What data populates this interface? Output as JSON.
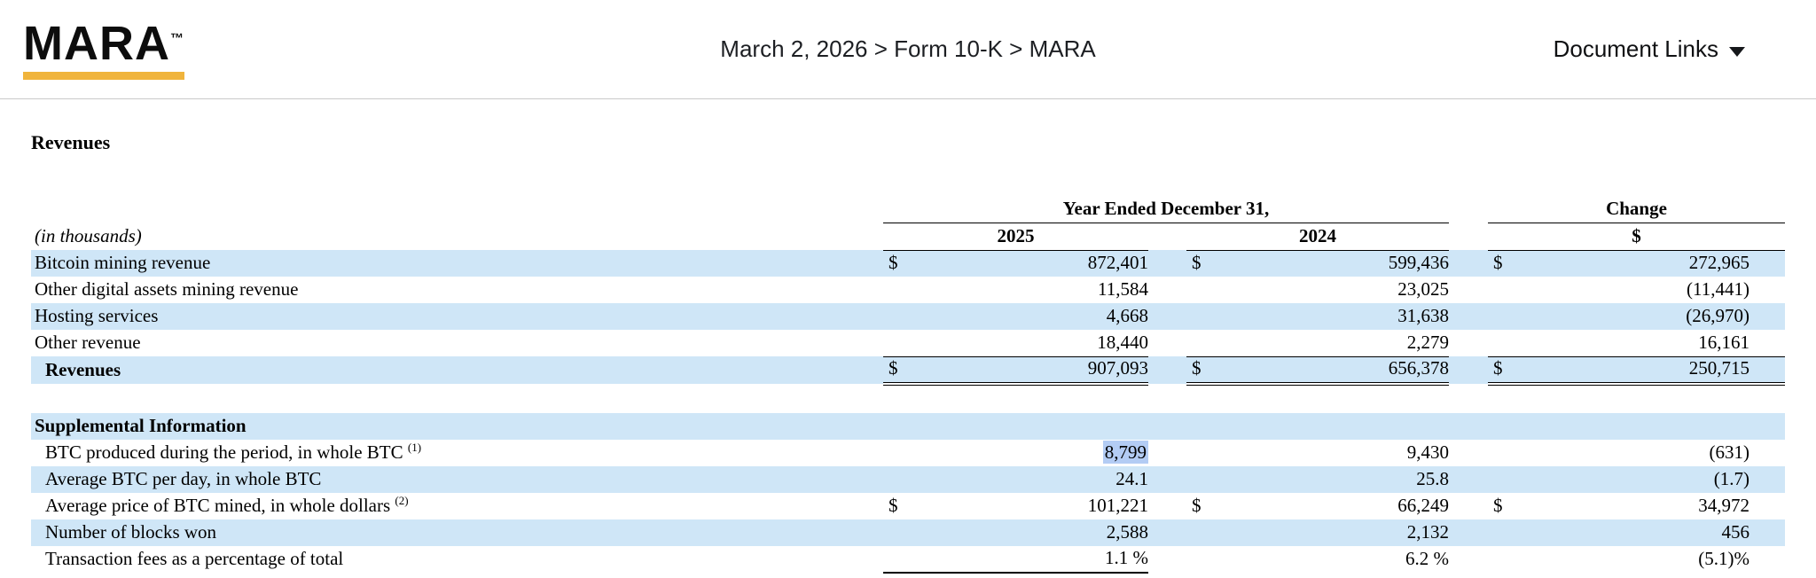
{
  "header": {
    "logo_text": "MARA",
    "logo_tm": "™",
    "breadcrumb": "March 2, 2026 > Form 10-K > MARA",
    "document_links_label": "Document Links"
  },
  "document": {
    "section_title": "Revenues"
  },
  "table": {
    "group_header": "Year Ended December 31,",
    "change_header": "Change",
    "col_2025": "2025",
    "col_2024": "2024",
    "change_sub": "$",
    "in_thousands": "(in thousands)",
    "revenue_rows": [
      {
        "label": "Bitcoin mining revenue",
        "cur25": "$",
        "v25": "872,401",
        "cur24": "$",
        "v24": "599,436",
        "curchg": "$",
        "vchg": "272,965",
        "shade": true
      },
      {
        "label": "Other digital assets mining revenue",
        "v25": "11,584",
        "v24": "23,025",
        "vchg": "(11,441)"
      },
      {
        "label": "Hosting services",
        "v25": "4,668",
        "v24": "31,638",
        "vchg": "(26,970)",
        "shade": true
      },
      {
        "label": "Other revenue",
        "v25": "18,440",
        "v24": "2,279",
        "vchg": "16,161"
      },
      {
        "label": "Revenues",
        "cur25": "$",
        "v25": "907,093",
        "cur24": "$",
        "v24": "656,378",
        "curchg": "$",
        "vchg": "250,715",
        "shade": true,
        "bold": true,
        "total": true,
        "indent": true
      }
    ],
    "supplemental_title": "Supplemental Information",
    "supplemental_rows": [
      {
        "label": "BTC produced during the period, in whole BTC",
        "sup": "(1)",
        "v25": "8,799",
        "v24": "9,430",
        "vchg": "(631)",
        "indent": true,
        "hl25": true
      },
      {
        "label": "Average BTC per day, in whole BTC",
        "v25": "24.1",
        "v24": "25.8",
        "vchg": "(1.7)",
        "shade": true,
        "indent": true
      },
      {
        "label": "Average price of BTC mined, in whole dollars",
        "sup": "(2)",
        "cur25": "$",
        "v25": "101,221",
        "cur24": "$",
        "v24": "66,249",
        "curchg": "$",
        "vchg": "34,972",
        "indent": true
      },
      {
        "label": "Number of blocks won",
        "v25": "2,588",
        "v24": "2,132",
        "vchg": "456",
        "shade": true,
        "indent": true
      },
      {
        "label": "Transaction fees as a percentage of total",
        "v25": "1.1 %",
        "v24": "6.2 %",
        "vchg": "(5.1)%",
        "indent": true
      }
    ]
  },
  "colors": {
    "brand_gold": "#F0B43C",
    "row_shade_blue": "#CFE6F7",
    "selection_highlight": "#B3CCF4"
  }
}
